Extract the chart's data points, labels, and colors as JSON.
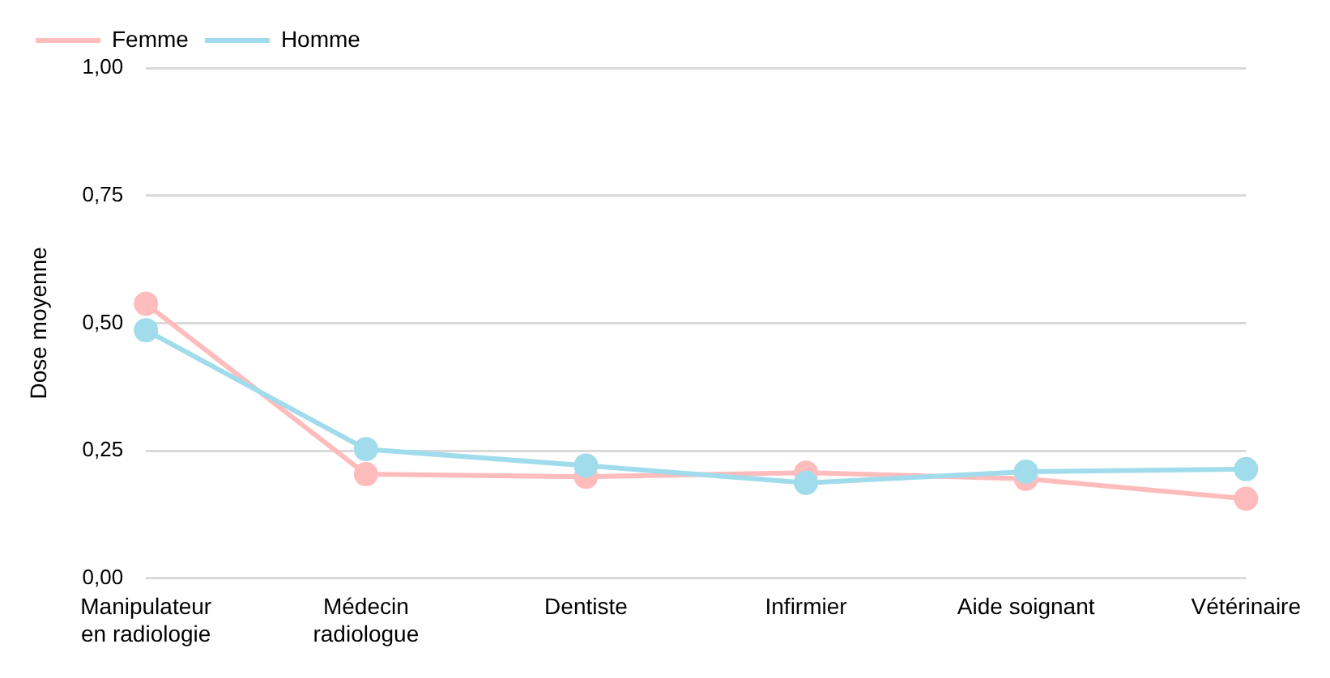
{
  "chart_data": {
    "type": "line",
    "ylabel": "Dose moyenne",
    "categories": [
      "Manipulateur en radiologie",
      "Médecin radiologue",
      "Dentiste",
      "Infirmier",
      "Aide soignant",
      "Vétérinaire"
    ],
    "series": [
      {
        "name": "Femme",
        "color": "#ffbcbc",
        "values": [
          0.538,
          0.204,
          0.199,
          0.207,
          0.195,
          0.156
        ]
      },
      {
        "name": "Homme",
        "color": "#a0dcec",
        "values": [
          0.486,
          0.253,
          0.221,
          0.187,
          0.209,
          0.214
        ]
      }
    ],
    "ylim": [
      0,
      1
    ],
    "yticks": [
      {
        "value": 0,
        "label": "0,00"
      },
      {
        "value": 0.25,
        "label": "0,25"
      },
      {
        "value": 0.5,
        "label": "0,50"
      },
      {
        "value": 0.75,
        "label": "0,75"
      },
      {
        "value": 1,
        "label": "1,00"
      }
    ],
    "grid": "y",
    "legend": "top left",
    "marker": "circle",
    "line_style": "solid"
  }
}
